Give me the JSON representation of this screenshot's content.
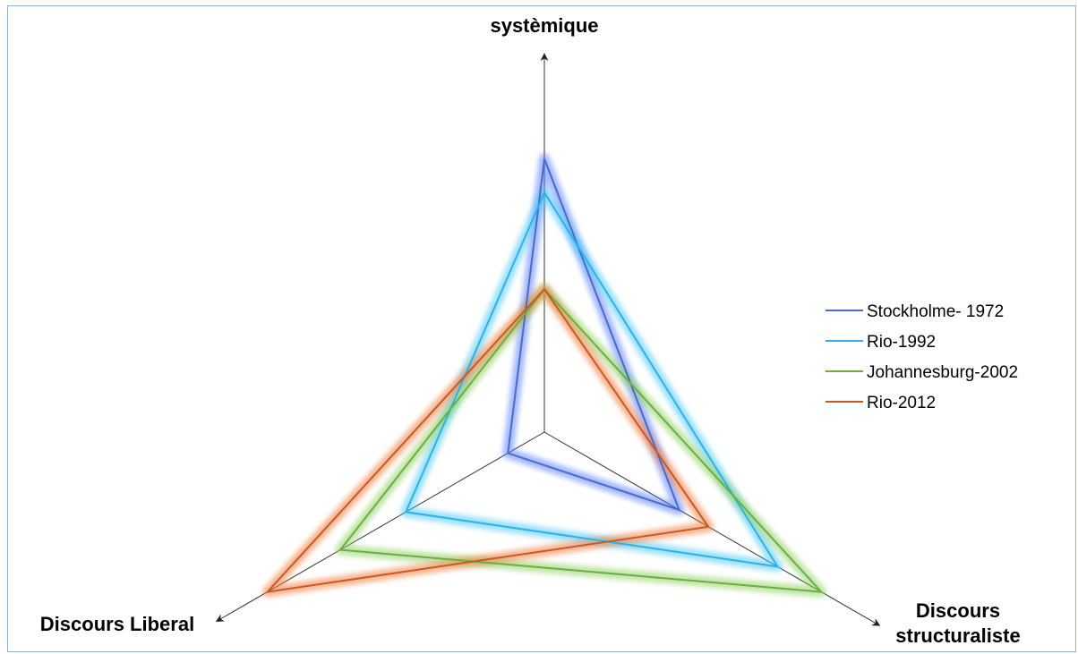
{
  "chart_data": {
    "type": "radar",
    "axes": [
      "systèmique",
      "Discours structuraliste",
      "Discours Liberal"
    ],
    "axis_label_lines": {
      "systèmique": [
        "systèmique"
      ],
      "Discours structuraliste": [
        "Discours",
        "structuraliste"
      ],
      "Discours Liberal": [
        "Discours Liberal"
      ]
    },
    "rmax": 10,
    "grid": false,
    "legend_position": "right",
    "series": [
      {
        "name": "Stockholme- 1972",
        "color": "#4a6cc4",
        "glow": "#5a7dff",
        "values": [
          6.5,
          3.7,
          1.0
        ]
      },
      {
        "name": "Rio-1992",
        "color": "#2bb3e8",
        "glow": "#4cc8f5",
        "values": [
          5.7,
          6.4,
          3.8
        ]
      },
      {
        "name": "Johannesburg-2002",
        "color": "#6aaf3f",
        "glow": "#8fd060",
        "values": [
          3.4,
          7.6,
          5.6
        ]
      },
      {
        "name": "Rio-2012",
        "color": "#c85a22",
        "glow": "#f07a3a",
        "values": [
          3.4,
          4.5,
          7.6
        ]
      }
    ]
  }
}
